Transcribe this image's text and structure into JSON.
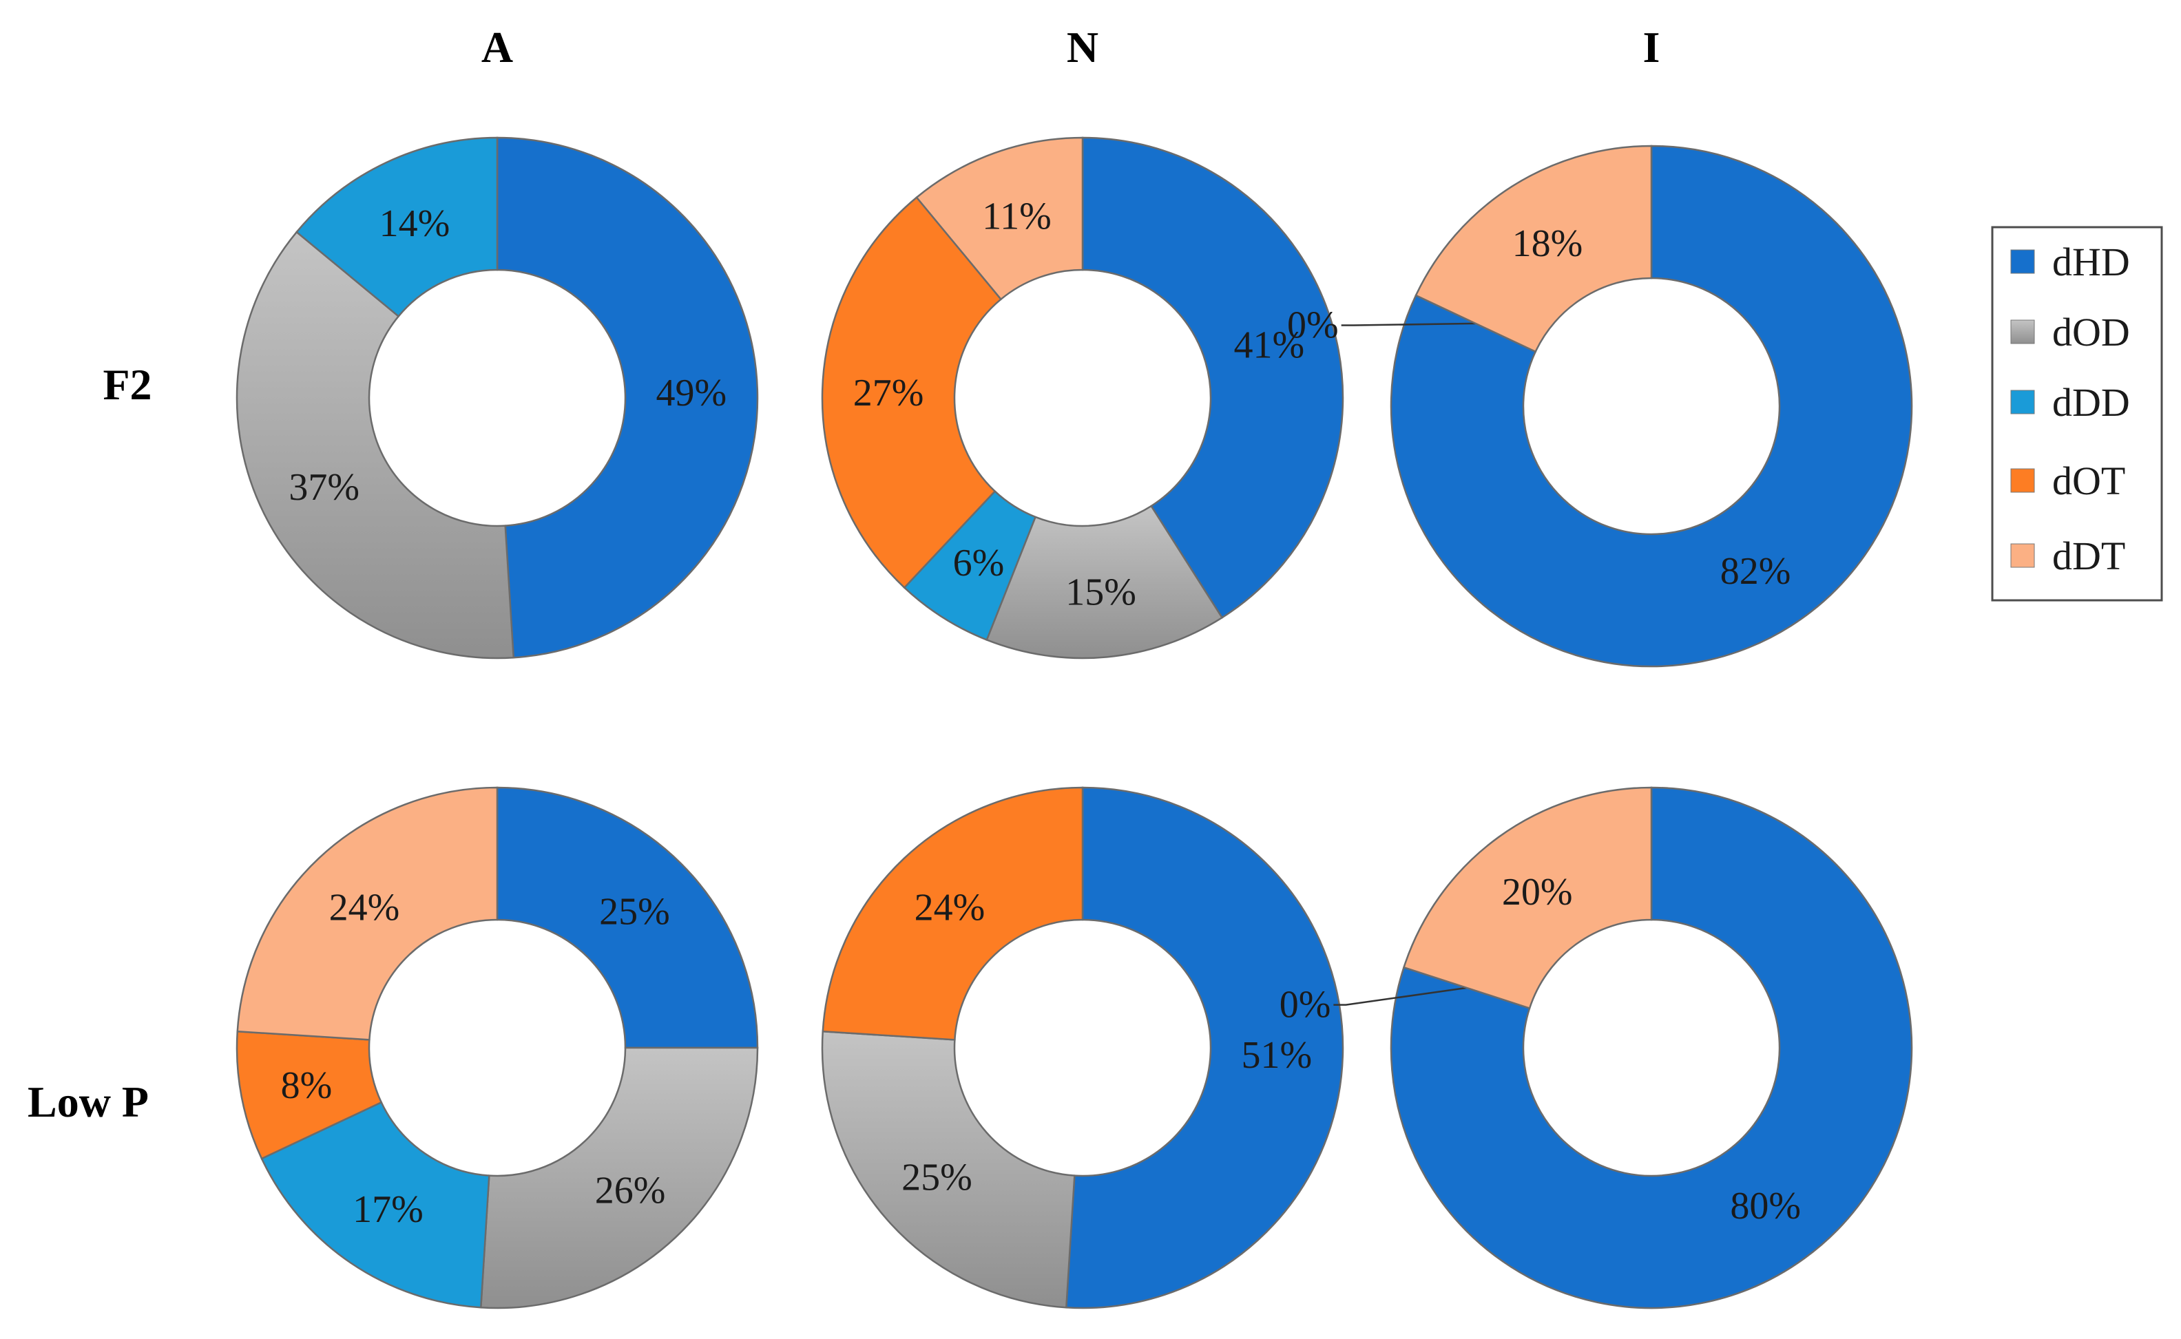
{
  "chart_data": {
    "type": "donut-grid",
    "columns": [
      "A",
      "N",
      "I"
    ],
    "rows": [
      "F2",
      "Low P"
    ],
    "legend": [
      "dHD",
      "dOD",
      "dDD",
      "dOT",
      "dDT"
    ],
    "colors": {
      "dHD": "#1670cc",
      "dOD": "#a8a8a8",
      "dDD": "#1a9bd8",
      "dOT": "#fd7d23",
      "dDT": "#fbb084"
    },
    "charts": [
      {
        "row": "F2",
        "column": "A",
        "slices": [
          {
            "label": "dHD",
            "value": 49,
            "text": "49%"
          },
          {
            "label": "dOD",
            "value": 37,
            "text": "37%"
          },
          {
            "label": "dDD",
            "value": 14,
            "text": "14%"
          }
        ]
      },
      {
        "row": "F2",
        "column": "N",
        "slices": [
          {
            "label": "dHD",
            "value": 41,
            "text": "41%"
          },
          {
            "label": "dOD",
            "value": 15,
            "text": "15%"
          },
          {
            "label": "dDD",
            "value": 6,
            "text": "6%"
          },
          {
            "label": "dOT",
            "value": 27,
            "text": "27%"
          },
          {
            "label": "dDT",
            "value": 11,
            "text": "11%"
          }
        ]
      },
      {
        "row": "F2",
        "column": "I",
        "slices": [
          {
            "label": "dHD",
            "value": 82,
            "text": "82%"
          },
          {
            "label": "dOT",
            "value": 0,
            "text": "0%",
            "callout": true
          },
          {
            "label": "dDT",
            "value": 18,
            "text": "18%"
          }
        ]
      },
      {
        "row": "Low P",
        "column": "A",
        "slices": [
          {
            "label": "dHD",
            "value": 25,
            "text": "25%"
          },
          {
            "label": "dOD",
            "value": 26,
            "text": "26%"
          },
          {
            "label": "dDD",
            "value": 17,
            "text": "17%"
          },
          {
            "label": "dOT",
            "value": 8,
            "text": "8%"
          },
          {
            "label": "dDT",
            "value": 24,
            "text": "24%"
          }
        ]
      },
      {
        "row": "Low P",
        "column": "N",
        "slices": [
          {
            "label": "dHD",
            "value": 51,
            "text": "51%"
          },
          {
            "label": "dOD",
            "value": 25,
            "text": "25%"
          },
          {
            "label": "dOT",
            "value": 24,
            "text": "24%"
          }
        ]
      },
      {
        "row": "Low P",
        "column": "I",
        "slices": [
          {
            "label": "dHD",
            "value": 80,
            "text": "80%"
          },
          {
            "label": "dOT",
            "value": 0,
            "text": "0%",
            "callout": true
          },
          {
            "label": "dDT",
            "value": 20,
            "text": "20%"
          }
        ]
      }
    ]
  }
}
